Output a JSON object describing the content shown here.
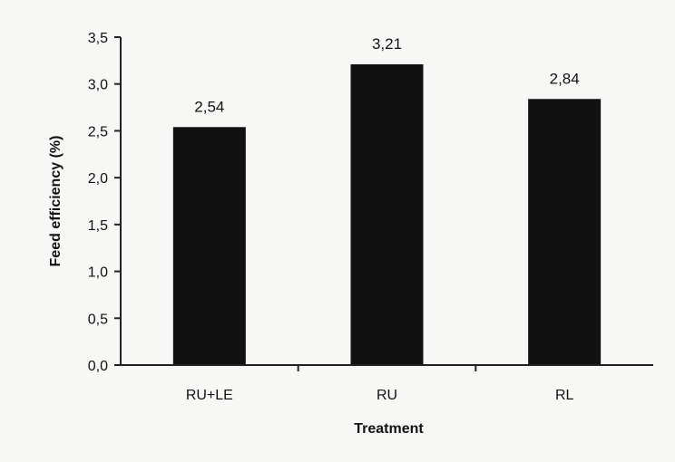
{
  "chart_data": {
    "type": "bar",
    "categories": [
      "RU+LE",
      "RU",
      "RL"
    ],
    "values": [
      2.54,
      3.21,
      2.84
    ],
    "value_labels": [
      "2,54",
      "3,21",
      "2,84"
    ],
    "title": "",
    "xlabel": "Treatment",
    "ylabel": "Feed efficiency (%)",
    "ylim": [
      0,
      3.5
    ],
    "yticks": [
      0,
      0.5,
      1,
      1.5,
      2,
      2.5,
      3,
      3.5
    ],
    "ytick_labels": [
      "0,0",
      "0,5",
      "1,0",
      "1,5",
      "2,0",
      "2,5",
      "3,0",
      "3,5"
    ],
    "grid": false,
    "legend": "none",
    "bar_color": "#111111",
    "axis_color": "#222222",
    "background_color": "#f7f7f5"
  }
}
